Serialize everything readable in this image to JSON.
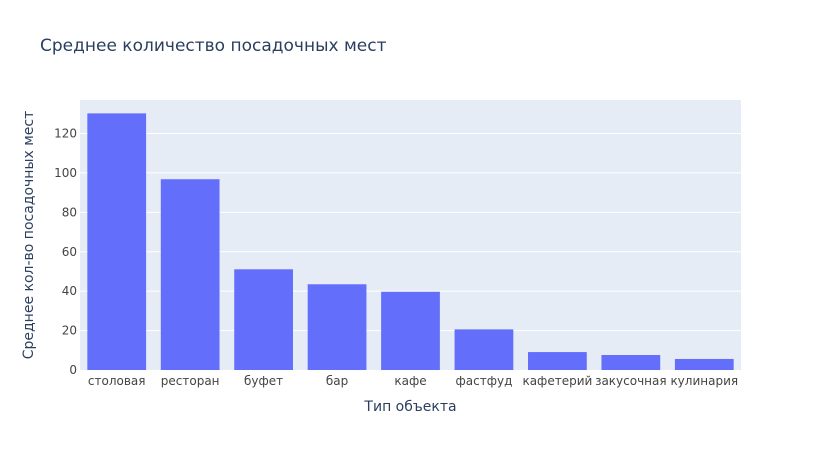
{
  "chart_data": {
    "type": "bar",
    "title": "Среднее количество посадочных мест",
    "xlabel": "Тип объекта",
    "ylabel": "Среднее кол-во посадочных мест",
    "categories": [
      "столовая",
      "ресторан",
      "буфет",
      "бар",
      "кафе",
      "фастфуд",
      "кафетерий",
      "закусочная",
      "кулинария"
    ],
    "values": [
      130.2,
      96.8,
      51.1,
      43.5,
      39.7,
      20.6,
      9.1,
      7.6,
      5.6
    ],
    "ylim": [
      0,
      137
    ],
    "yticks": [
      0,
      20,
      40,
      60,
      80,
      100,
      120
    ],
    "grid": true,
    "colors": {
      "bar": "#636efa",
      "plot_bg": "#e5ecf6",
      "grid": "#ffffff",
      "text": "#2a3f5f",
      "tick_text": "#444444"
    }
  }
}
